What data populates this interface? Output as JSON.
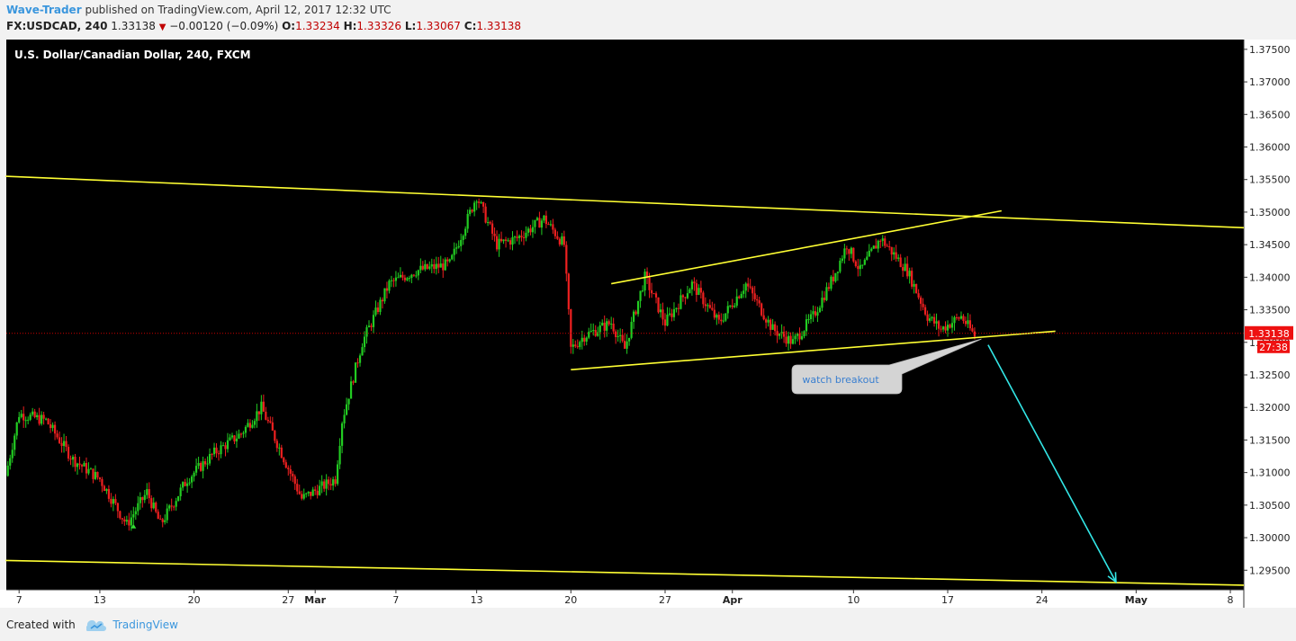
{
  "header": {
    "author": "Wave-Trader",
    "published_text": "published on TradingView.com, April 12, 2017 12:32 UTC",
    "symbol": "FX:USDCAD, 240",
    "last": "1.33138",
    "change": "−0.00120 (−0.09%)",
    "open_label": "O:",
    "open": "1.33234",
    "high_label": "H:",
    "high": "1.33326",
    "low_label": "L:",
    "low": "1.33067",
    "close_label": "C:",
    "close": "1.33138"
  },
  "footer": {
    "created_with": "Created with",
    "brand": "TradingView"
  },
  "chart_data": {
    "type": "candlestick",
    "title": "U.S. Dollar/Canadian Dollar, 240, FXCM",
    "y_range": [
      1.292,
      1.3765
    ],
    "y_ticks": [
      "1.37500",
      "1.37000",
      "1.36500",
      "1.36000",
      "1.35500",
      "1.35000",
      "1.34500",
      "1.34000",
      "1.33500",
      "1.33000",
      "1.32500",
      "1.32000",
      "1.31500",
      "1.31000",
      "1.30500",
      "1.30000",
      "1.29500"
    ],
    "y_tick_values": [
      1.375,
      1.37,
      1.365,
      1.36,
      1.355,
      1.35,
      1.345,
      1.34,
      1.335,
      1.33,
      1.325,
      1.32,
      1.315,
      1.31,
      1.305,
      1.3,
      1.295
    ],
    "x_ticks": [
      "7",
      "13",
      "20",
      "27",
      "Mar",
      "7",
      "13",
      "20",
      "27",
      "Apr",
      "10",
      "17",
      "24",
      "May",
      "8"
    ],
    "x_tick_days": [
      7,
      13,
      20,
      27,
      29,
      35,
      41,
      48,
      55,
      60,
      69,
      76,
      83,
      90,
      97
    ],
    "x_day_origin": "2017-02-07 = day 7",
    "price_label": "1.33138",
    "countdown_label": "27:38",
    "price_waypoints": [
      [
        6.0,
        1.3095
      ],
      [
        7.0,
        1.319
      ],
      [
        9.0,
        1.318
      ],
      [
        11.0,
        1.312
      ],
      [
        13.0,
        1.309
      ],
      [
        15.0,
        1.302
      ],
      [
        16.5,
        1.307
      ],
      [
        17.5,
        1.302
      ],
      [
        19.5,
        1.309
      ],
      [
        21.5,
        1.313
      ],
      [
        23.5,
        1.316
      ],
      [
        25.0,
        1.32
      ],
      [
        26.5,
        1.313
      ],
      [
        28.0,
        1.306
      ],
      [
        30.5,
        1.309
      ],
      [
        31.0,
        1.318
      ],
      [
        32.5,
        1.33
      ],
      [
        34.5,
        1.339
      ],
      [
        36.5,
        1.341
      ],
      [
        39.0,
        1.342
      ],
      [
        41.0,
        1.3525
      ],
      [
        42.5,
        1.345
      ],
      [
        44.0,
        1.346
      ],
      [
        46.0,
        1.349
      ],
      [
        47.5,
        1.345
      ],
      [
        48.0,
        1.329
      ],
      [
        49.0,
        1.331
      ],
      [
        51.0,
        1.333
      ],
      [
        52.0,
        1.329
      ],
      [
        53.5,
        1.34
      ],
      [
        55.0,
        1.333
      ],
      [
        57.0,
        1.339
      ],
      [
        59.0,
        1.333
      ],
      [
        61.0,
        1.339
      ],
      [
        63.0,
        1.332
      ],
      [
        64.5,
        1.33
      ],
      [
        66.0,
        1.334
      ],
      [
        67.5,
        1.34
      ],
      [
        68.5,
        1.345
      ],
      [
        69.5,
        1.341
      ],
      [
        71.0,
        1.346
      ],
      [
        73.0,
        1.341
      ],
      [
        74.5,
        1.334
      ],
      [
        75.5,
        1.332
      ],
      [
        77.0,
        1.334
      ],
      [
        78.0,
        1.331
      ]
    ],
    "trendlines": [
      {
        "name": "upper-channel",
        "color": "#ffff33",
        "points": [
          [
            6,
            1.3555
          ],
          [
            98,
            1.3476
          ]
        ]
      },
      {
        "name": "lower-channel",
        "color": "#ffff33",
        "points": [
          [
            6,
            1.2965
          ],
          [
            98,
            1.2927
          ]
        ]
      },
      {
        "name": "wedge-top",
        "color": "#ffff33",
        "points": [
          [
            51.0,
            1.339
          ],
          [
            80.0,
            1.3502
          ]
        ]
      },
      {
        "name": "wedge-bottom",
        "color": "#ffff33",
        "points": [
          [
            48.0,
            1.3258
          ],
          [
            84.0,
            1.3317
          ]
        ]
      }
    ],
    "projection_arrow": {
      "color": "#33e6e6",
      "from": [
        79.0,
        1.3296
      ],
      "to": [
        88.5,
        1.2932
      ]
    },
    "signal_marker": {
      "day": 15.5,
      "price": 1.3017,
      "color": "#33dd33"
    },
    "callout": {
      "text": "watch breakout",
      "at": [
        78.5,
        1.3305
      ]
    },
    "colors": {
      "up": "#22cc22",
      "down": "#ee2020",
      "background": "#000000",
      "axis_text": "#222222",
      "price_line": "#cc0000",
      "price_tag": "#ee1111"
    }
  }
}
